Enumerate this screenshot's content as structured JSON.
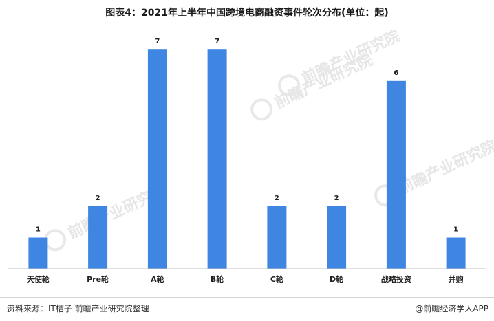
{
  "chart_data": {
    "type": "bar",
    "title": "图表4：2021年上半年中国跨境电商融资事件轮次分布(单位：起)",
    "categories": [
      "天使轮",
      "Pre轮",
      "A轮",
      "B轮",
      "C轮",
      "D轮",
      "战略投资",
      "并购"
    ],
    "values": [
      1,
      2,
      7,
      7,
      2,
      2,
      6,
      1
    ],
    "xlabel": "",
    "ylabel": "",
    "ylim": [
      0,
      7.4
    ],
    "grid": false,
    "legend": "none",
    "bar_color": "#3f86e3"
  },
  "footer": {
    "source": "资料来源：IT桔子 前瞻产业研究院整理",
    "brand": "@前瞻经济学人APP"
  },
  "watermark": {
    "text": "前瞻产业研究院"
  }
}
